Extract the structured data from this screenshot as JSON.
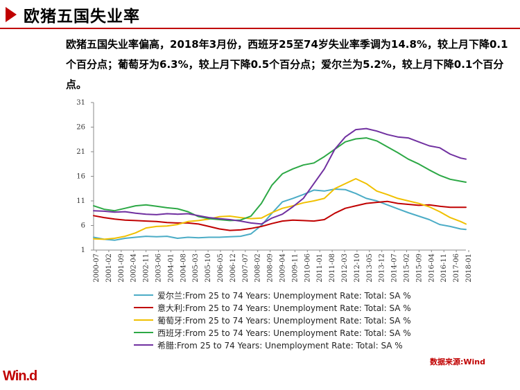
{
  "header": {
    "title": "欧猪五国失业率"
  },
  "summary": "欧猪五国失业率偏高，2018年3月份，西班牙25至74岁失业率季调为14.8%，较上月下降0.1个百分点；葡萄牙为6.3%，较上月下降0.5个百分点；爱尔兰为5.2%，较上月下降0.1个百分点。",
  "source": "数据来源:Wind",
  "logo": "Win.d",
  "chart_data": {
    "type": "line",
    "ylim": [
      1,
      31
    ],
    "yticks": [
      1,
      6,
      11,
      16,
      21,
      26,
      31
    ],
    "x_ticks": [
      "2000-07",
      "2001-02",
      "2001-09",
      "2002-04",
      "2002-11",
      "2003-06",
      "2004-01",
      "2004-08",
      "2005-03",
      "2005-10",
      "2006-05",
      "2006-12",
      "2007-07",
      "2008-02",
      "2008-09",
      "2009-04",
      "2009-11",
      "2010-06",
      "2011-01",
      "2011-08",
      "2012-03",
      "2012-10",
      "2013-05",
      "2013-12",
      "2014-07",
      "2015-02",
      "2015-09",
      "2016-04",
      "2016-11",
      "2017-06",
      "2018-01"
    ],
    "x_range": [
      2000.5,
      2018.25
    ],
    "series": [
      {
        "name": "爱尔兰:From  25 to 74 Years: Unemployment  Rate: Total: SA %",
        "color": "#4bacc6",
        "points": [
          [
            2000.5,
            3.6
          ],
          [
            2001.0,
            3.2
          ],
          [
            2001.5,
            3.0
          ],
          [
            2002.0,
            3.4
          ],
          [
            2002.5,
            3.6
          ],
          [
            2003.0,
            3.8
          ],
          [
            2003.5,
            3.7
          ],
          [
            2004.0,
            3.8
          ],
          [
            2004.5,
            3.4
          ],
          [
            2005.0,
            3.6
          ],
          [
            2005.5,
            3.5
          ],
          [
            2006.0,
            3.6
          ],
          [
            2006.5,
            3.6
          ],
          [
            2007.0,
            3.7
          ],
          [
            2007.5,
            3.8
          ],
          [
            2008.0,
            4.3
          ],
          [
            2008.5,
            6.0
          ],
          [
            2009.0,
            8.5
          ],
          [
            2009.5,
            10.8
          ],
          [
            2010.0,
            11.5
          ],
          [
            2010.5,
            12.3
          ],
          [
            2011.0,
            13.2
          ],
          [
            2011.5,
            13.0
          ],
          [
            2012.0,
            13.4
          ],
          [
            2012.5,
            13.3
          ],
          [
            2013.0,
            12.5
          ],
          [
            2013.5,
            11.5
          ],
          [
            2014.0,
            11.0
          ],
          [
            2014.5,
            10.2
          ],
          [
            2015.0,
            9.4
          ],
          [
            2015.5,
            8.6
          ],
          [
            2016.0,
            7.9
          ],
          [
            2016.5,
            7.2
          ],
          [
            2017.0,
            6.2
          ],
          [
            2017.5,
            5.8
          ],
          [
            2018.0,
            5.3
          ],
          [
            2018.25,
            5.2
          ]
        ]
      },
      {
        "name": "意大利:From  25 to 74 Years: Unemployment  Rate: Total: SA %",
        "color": "#c00000",
        "points": [
          [
            2000.5,
            8.0
          ],
          [
            2001.0,
            7.6
          ],
          [
            2001.5,
            7.3
          ],
          [
            2002.0,
            7.1
          ],
          [
            2002.5,
            7.0
          ],
          [
            2003.0,
            6.9
          ],
          [
            2003.5,
            6.8
          ],
          [
            2004.0,
            6.6
          ],
          [
            2004.5,
            6.5
          ],
          [
            2005.0,
            6.5
          ],
          [
            2005.5,
            6.3
          ],
          [
            2006.0,
            5.8
          ],
          [
            2006.5,
            5.3
          ],
          [
            2007.0,
            5.0
          ],
          [
            2007.5,
            5.1
          ],
          [
            2008.0,
            5.4
          ],
          [
            2008.5,
            5.8
          ],
          [
            2009.0,
            6.4
          ],
          [
            2009.5,
            6.9
          ],
          [
            2010.0,
            7.1
          ],
          [
            2010.5,
            7.0
          ],
          [
            2011.0,
            6.9
          ],
          [
            2011.5,
            7.2
          ],
          [
            2012.0,
            8.5
          ],
          [
            2012.5,
            9.5
          ],
          [
            2013.0,
            10.0
          ],
          [
            2013.5,
            10.5
          ],
          [
            2014.0,
            10.7
          ],
          [
            2014.5,
            10.9
          ],
          [
            2015.0,
            10.5
          ],
          [
            2015.5,
            10.3
          ],
          [
            2016.0,
            10.1
          ],
          [
            2016.5,
            10.2
          ],
          [
            2017.0,
            9.9
          ],
          [
            2017.5,
            9.7
          ],
          [
            2018.0,
            9.7
          ],
          [
            2018.25,
            9.7
          ]
        ]
      },
      {
        "name": "葡萄牙:From  25 to 74 Years: Unemployment  Rate: Total: SA %",
        "color": "#f0c000",
        "points": [
          [
            2000.5,
            3.3
          ],
          [
            2001.0,
            3.2
          ],
          [
            2001.5,
            3.4
          ],
          [
            2002.0,
            3.8
          ],
          [
            2002.5,
            4.5
          ],
          [
            2003.0,
            5.5
          ],
          [
            2003.5,
            5.8
          ],
          [
            2004.0,
            5.9
          ],
          [
            2004.5,
            6.2
          ],
          [
            2005.0,
            6.8
          ],
          [
            2005.5,
            7.0
          ],
          [
            2006.0,
            7.3
          ],
          [
            2006.5,
            7.8
          ],
          [
            2007.0,
            7.9
          ],
          [
            2007.5,
            7.6
          ],
          [
            2008.0,
            7.4
          ],
          [
            2008.5,
            7.5
          ],
          [
            2009.0,
            8.6
          ],
          [
            2009.5,
            9.5
          ],
          [
            2010.0,
            10.0
          ],
          [
            2010.5,
            10.6
          ],
          [
            2011.0,
            11.0
          ],
          [
            2011.5,
            11.5
          ],
          [
            2012.0,
            13.5
          ],
          [
            2012.5,
            14.5
          ],
          [
            2013.0,
            15.5
          ],
          [
            2013.5,
            14.5
          ],
          [
            2014.0,
            13.0
          ],
          [
            2014.5,
            12.3
          ],
          [
            2015.0,
            11.5
          ],
          [
            2015.5,
            11.0
          ],
          [
            2016.0,
            10.5
          ],
          [
            2016.5,
            9.8
          ],
          [
            2017.0,
            8.8
          ],
          [
            2017.5,
            7.6
          ],
          [
            2018.0,
            6.8
          ],
          [
            2018.25,
            6.3
          ]
        ]
      },
      {
        "name": "西班牙:From  25 to 74 Years: Unemployment  Rate: Total: SA %",
        "color": "#2ca845",
        "points": [
          [
            2000.5,
            10.0
          ],
          [
            2001.0,
            9.3
          ],
          [
            2001.5,
            9.0
          ],
          [
            2002.0,
            9.5
          ],
          [
            2002.5,
            10.0
          ],
          [
            2003.0,
            10.2
          ],
          [
            2003.5,
            9.9
          ],
          [
            2004.0,
            9.6
          ],
          [
            2004.5,
            9.4
          ],
          [
            2005.0,
            8.8
          ],
          [
            2005.5,
            7.8
          ],
          [
            2006.0,
            7.4
          ],
          [
            2006.5,
            7.2
          ],
          [
            2007.0,
            7.0
          ],
          [
            2007.5,
            7.1
          ],
          [
            2008.0,
            7.9
          ],
          [
            2008.5,
            10.5
          ],
          [
            2009.0,
            14.2
          ],
          [
            2009.5,
            16.5
          ],
          [
            2010.0,
            17.5
          ],
          [
            2010.5,
            18.3
          ],
          [
            2011.0,
            18.7
          ],
          [
            2011.5,
            20.0
          ],
          [
            2012.0,
            21.5
          ],
          [
            2012.5,
            23.0
          ],
          [
            2013.0,
            23.6
          ],
          [
            2013.5,
            23.8
          ],
          [
            2014.0,
            23.2
          ],
          [
            2014.5,
            22.0
          ],
          [
            2015.0,
            20.8
          ],
          [
            2015.5,
            19.5
          ],
          [
            2016.0,
            18.5
          ],
          [
            2016.5,
            17.3
          ],
          [
            2017.0,
            16.2
          ],
          [
            2017.5,
            15.4
          ],
          [
            2018.0,
            15.0
          ],
          [
            2018.25,
            14.8
          ]
        ]
      },
      {
        "name": "希腊:From  25 to 74 Years: Unemployment  Rate: Total: SA %",
        "color": "#7030a0",
        "points": [
          [
            2000.5,
            9.0
          ],
          [
            2001.0,
            8.9
          ],
          [
            2001.5,
            8.7
          ],
          [
            2002.0,
            8.8
          ],
          [
            2002.5,
            8.5
          ],
          [
            2003.0,
            8.3
          ],
          [
            2003.5,
            8.2
          ],
          [
            2004.0,
            8.4
          ],
          [
            2004.5,
            8.3
          ],
          [
            2005.0,
            8.4
          ],
          [
            2005.5,
            8.0
          ],
          [
            2006.0,
            7.6
          ],
          [
            2006.5,
            7.4
          ],
          [
            2007.0,
            7.2
          ],
          [
            2007.5,
            6.9
          ],
          [
            2008.0,
            6.5
          ],
          [
            2008.5,
            6.3
          ],
          [
            2009.0,
            7.5
          ],
          [
            2009.5,
            8.3
          ],
          [
            2010.0,
            9.8
          ],
          [
            2010.5,
            11.5
          ],
          [
            2011.0,
            14.5
          ],
          [
            2011.5,
            17.5
          ],
          [
            2012.0,
            21.5
          ],
          [
            2012.5,
            24.0
          ],
          [
            2013.0,
            25.5
          ],
          [
            2013.5,
            25.7
          ],
          [
            2014.0,
            25.2
          ],
          [
            2014.5,
            24.5
          ],
          [
            2015.0,
            24.0
          ],
          [
            2015.5,
            23.8
          ],
          [
            2016.0,
            23.0
          ],
          [
            2016.5,
            22.2
          ],
          [
            2017.0,
            21.8
          ],
          [
            2017.5,
            20.5
          ],
          [
            2018.0,
            19.7
          ],
          [
            2018.25,
            19.5
          ]
        ]
      }
    ]
  }
}
